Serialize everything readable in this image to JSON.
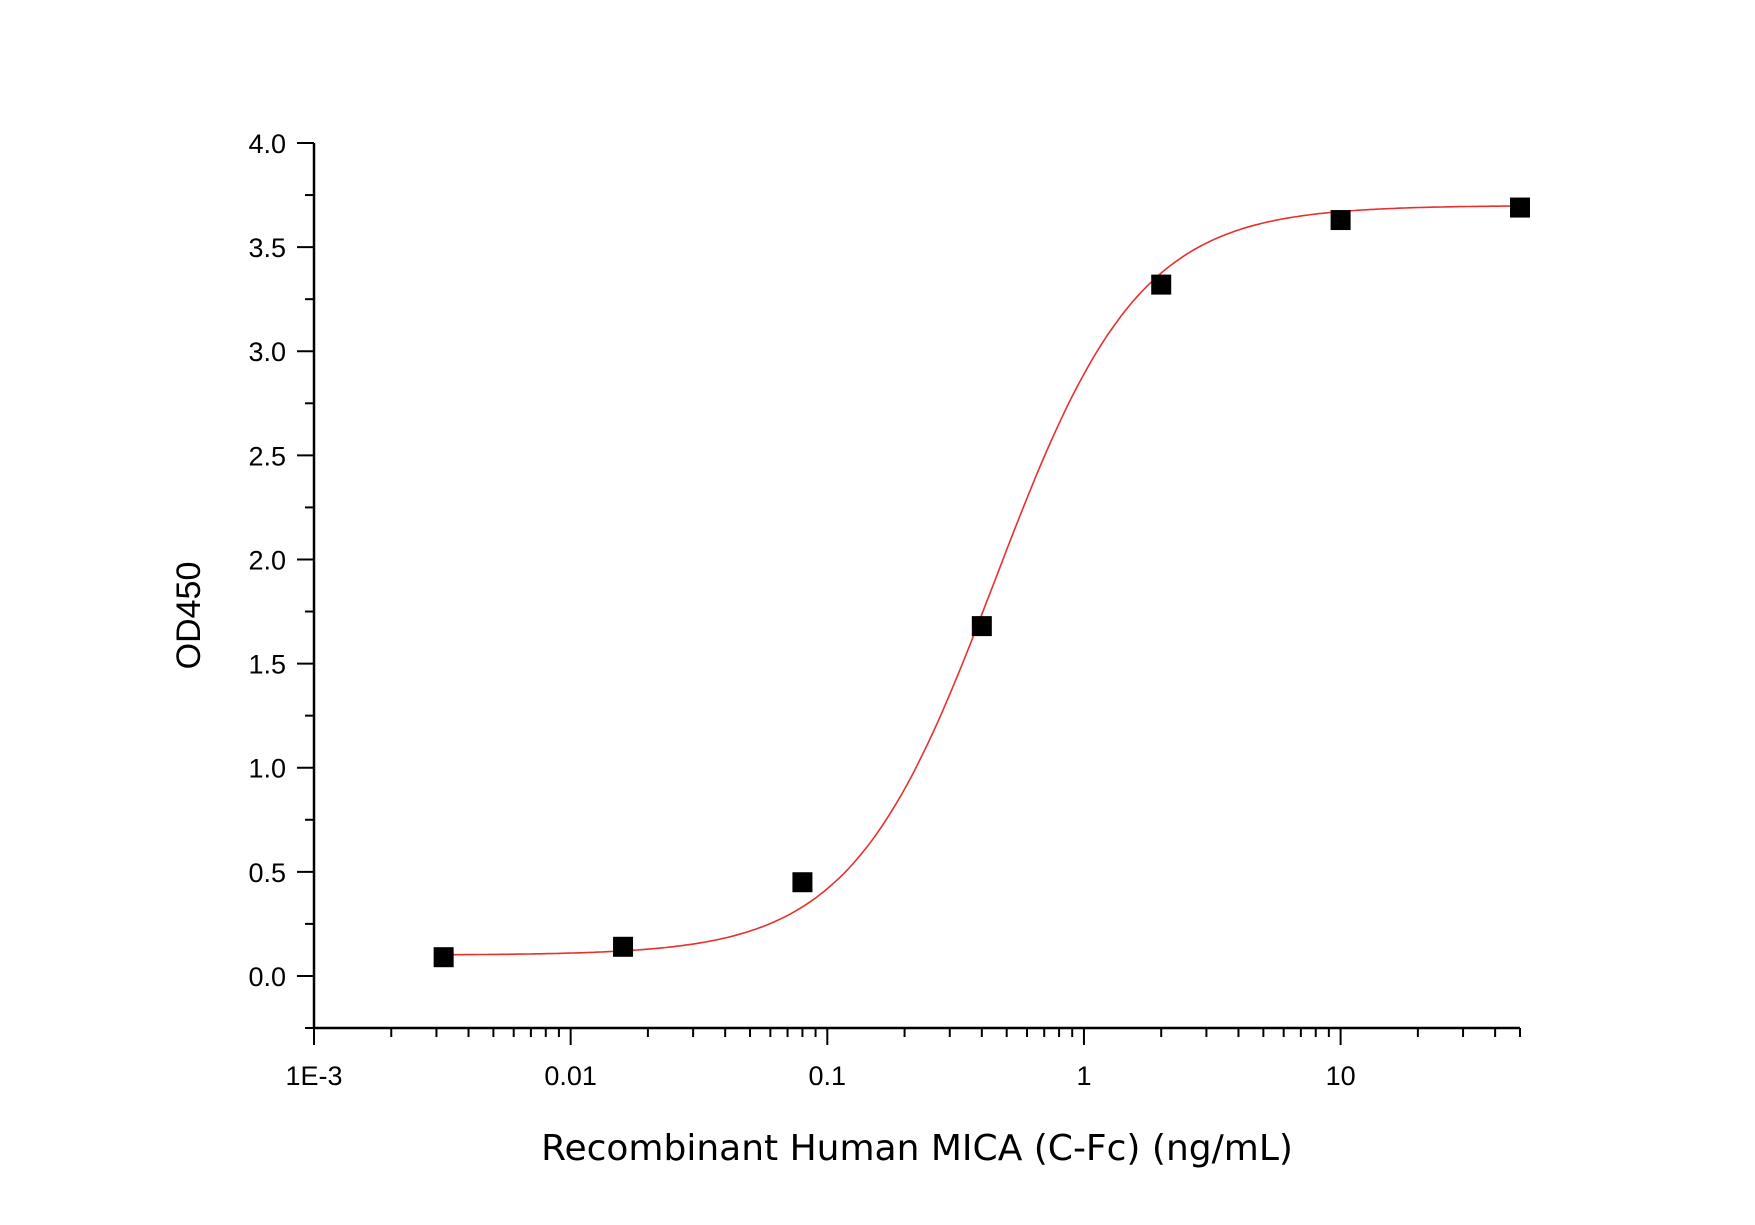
{
  "chart_data": {
    "type": "scatter",
    "title": "",
    "xlabel": "Recombinant Human MICA (C-Fc) (ng/mL)",
    "ylabel": "OD450",
    "x_scale": "log",
    "xlim": [
      0.001,
      50
    ],
    "ylim": [
      -0.25,
      4.0
    ],
    "x_ticks": [
      0.001,
      0.01,
      0.1,
      1,
      10
    ],
    "x_tick_labels": [
      "1E-3",
      "0.01",
      "0.1",
      "1",
      "10"
    ],
    "y_ticks": [
      0,
      0.5,
      1,
      1.5,
      2,
      2.5,
      3,
      3.5,
      4
    ],
    "y_tick_labels": [
      "0.0",
      "0.5",
      "1.0",
      "1.5",
      "2.0",
      "2.5",
      "3.0",
      "3.5",
      "4.0"
    ],
    "grid": false,
    "legend": "none",
    "series": [
      {
        "marker": "square",
        "color": "#000000",
        "x": [
          0.0032,
          0.016,
          0.08,
          0.4,
          2,
          10,
          50
        ],
        "y": [
          0.09,
          0.14,
          0.45,
          1.68,
          3.32,
          3.63,
          3.69
        ]
      }
    ],
    "fit": {
      "type": "4PL",
      "color": "#e8302c",
      "bottom": 0.1,
      "top": 3.7,
      "ec50": 0.45,
      "hill": 1.55
    }
  }
}
